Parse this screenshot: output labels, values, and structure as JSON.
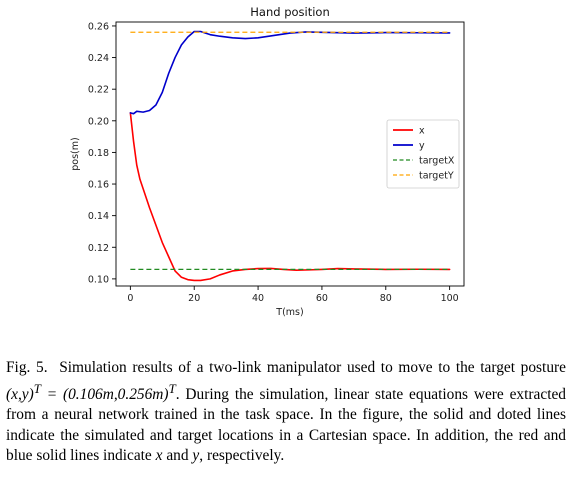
{
  "chart_data": {
    "type": "line",
    "title": "Hand position",
    "xlabel": "T(ms)",
    "ylabel": "pos(m)",
    "xlim": [
      -4.5,
      104.5
    ],
    "ylim": [
      0.0955,
      0.2625
    ],
    "xticks": [
      0,
      20,
      40,
      60,
      80,
      100
    ],
    "yticks": [
      0.1,
      0.12,
      0.14,
      0.16,
      0.18,
      0.2,
      0.22,
      0.24,
      0.26
    ],
    "ytick_labels": [
      "0.10",
      "0.12",
      "0.14",
      "0.16",
      "0.18",
      "0.20",
      "0.22",
      "0.24",
      "0.26"
    ],
    "grid": false,
    "legend_position": "center-right",
    "series": [
      {
        "name": "x",
        "style": "solid",
        "color": "#ff0000",
        "points": [
          [
            0,
            0.205
          ],
          [
            1,
            0.187
          ],
          [
            2,
            0.172
          ],
          [
            3,
            0.163
          ],
          [
            4,
            0.157
          ],
          [
            5,
            0.151
          ],
          [
            6,
            0.145
          ],
          [
            8,
            0.134
          ],
          [
            10,
            0.123
          ],
          [
            12,
            0.114
          ],
          [
            14,
            0.105
          ],
          [
            16,
            0.101
          ],
          [
            18,
            0.0995
          ],
          [
            20,
            0.099
          ],
          [
            22,
            0.099
          ],
          [
            25,
            0.1
          ],
          [
            28,
            0.1025
          ],
          [
            32,
            0.105
          ],
          [
            36,
            0.106
          ],
          [
            40,
            0.1065
          ],
          [
            44,
            0.1066
          ],
          [
            48,
            0.106
          ],
          [
            52,
            0.1055
          ],
          [
            56,
            0.1057
          ],
          [
            60,
            0.106
          ],
          [
            65,
            0.1065
          ],
          [
            70,
            0.1063
          ],
          [
            80,
            0.106
          ],
          [
            90,
            0.1061
          ],
          [
            100,
            0.106
          ]
        ]
      },
      {
        "name": "y",
        "style": "solid",
        "color": "#0000cc",
        "points": [
          [
            0,
            0.205
          ],
          [
            1,
            0.2045
          ],
          [
            2,
            0.206
          ],
          [
            4,
            0.2055
          ],
          [
            6,
            0.2065
          ],
          [
            8,
            0.21
          ],
          [
            10,
            0.218
          ],
          [
            12,
            0.23
          ],
          [
            14,
            0.24
          ],
          [
            16,
            0.248
          ],
          [
            18,
            0.253
          ],
          [
            20,
            0.2565
          ],
          [
            22,
            0.2565
          ],
          [
            25,
            0.2545
          ],
          [
            28,
            0.2535
          ],
          [
            32,
            0.2525
          ],
          [
            36,
            0.252
          ],
          [
            40,
            0.2525
          ],
          [
            45,
            0.254
          ],
          [
            50,
            0.2555
          ],
          [
            55,
            0.2562
          ],
          [
            60,
            0.256
          ],
          [
            70,
            0.2555
          ],
          [
            80,
            0.2558
          ],
          [
            90,
            0.2557
          ],
          [
            100,
            0.2556
          ]
        ]
      },
      {
        "name": "targetX",
        "style": "dashed",
        "color": "#228b22",
        "points": [
          [
            0,
            0.106
          ],
          [
            100,
            0.106
          ]
        ]
      },
      {
        "name": "targetY",
        "style": "dashed",
        "color": "#ffa500",
        "points": [
          [
            0,
            0.256
          ],
          [
            100,
            0.256
          ]
        ]
      }
    ]
  },
  "caption": {
    "label": "Fig. 5.",
    "pre": "Simulation results of a two-link manipulator used to move to the target posture",
    "math_lhs": "(x,y)",
    "sup": "T",
    "math_mid": " = (0.106m,0.256m)",
    "post": ". During the simulation, linear state equations were extracted from a neural network trained in the task space. In the figure, the solid and doted lines indicate the simulated and target locations in a Cartesian space. In addition, the red and blue solid lines indicate",
    "var_x": "x",
    "and": "and",
    "var_y": "y",
    "end": ", respectively."
  }
}
